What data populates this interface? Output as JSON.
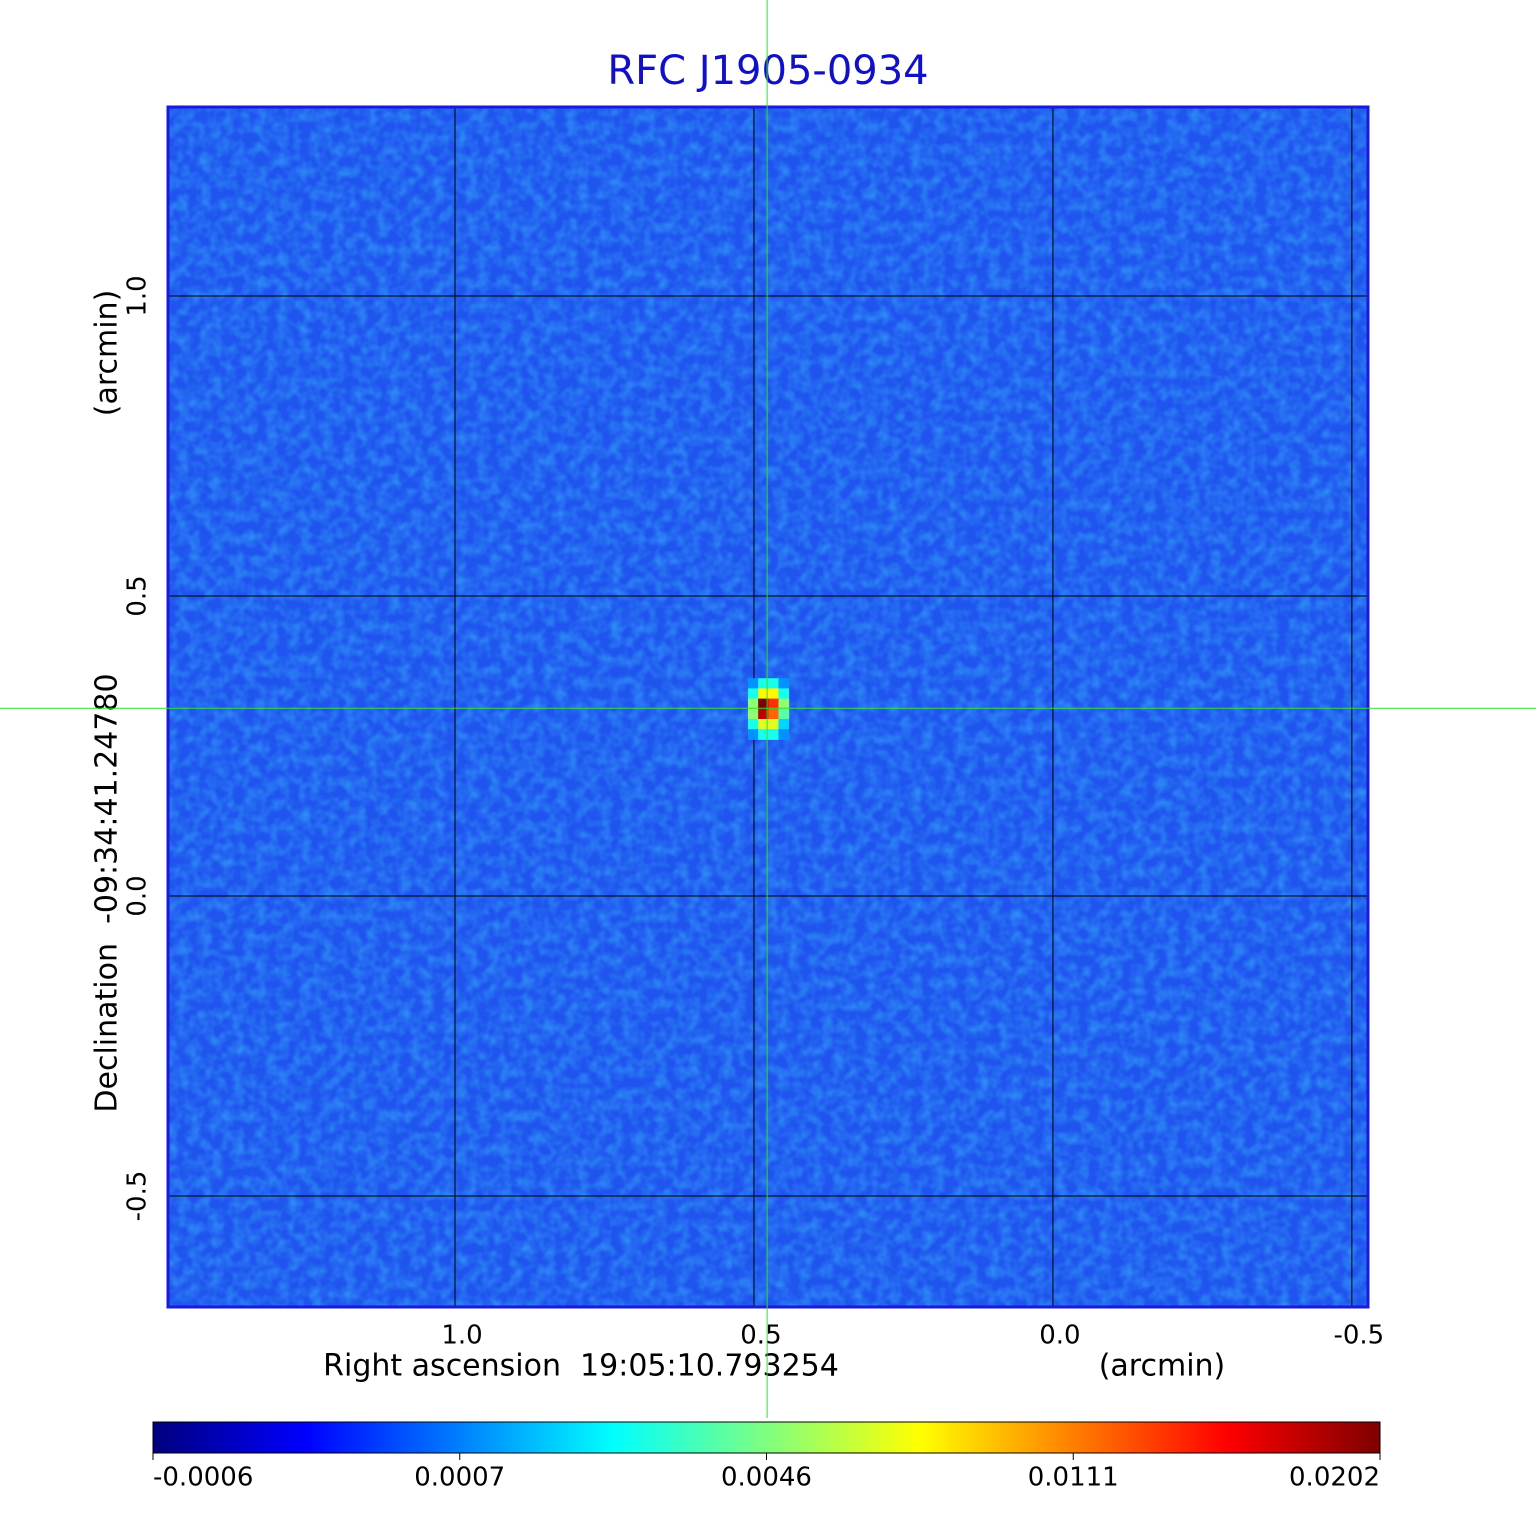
{
  "chart_data": {
    "type": "image",
    "title": "RFC J1905-0934",
    "x_label": "Right ascension  19:05:10.793254",
    "x_unit": "(arcmin)",
    "y_label": "Declination  -09:34:41.24780",
    "y_unit": "(arcmin)",
    "xlim": [
      1.48,
      -0.527
    ],
    "ylim": [
      -0.685,
      1.315
    ],
    "xticks": [
      {
        "value": 1,
        "label": "1.0"
      },
      0.5,
      {
        "value": 0,
        "label": "0.0"
      },
      -0.5
    ],
    "yticks": [
      -0.5,
      {
        "value": 0,
        "label": "0.0"
      },
      0.5,
      {
        "value": 1,
        "label": "1.0"
      }
    ],
    "grid": true,
    "colormap": [
      "#00007f",
      "#0000ff",
      "#007fff",
      "#00ffff",
      "#7fff7f",
      "#ffff00",
      "#ff7f00",
      "#ff0000",
      "#7f0000"
    ],
    "colorbar_ticks": [
      -0.0006,
      0.0007,
      0.0046,
      0.0111,
      0.0202
    ],
    "image": {
      "x0": 0.51,
      "y0": 0.363,
      "pixel_size": 0.017,
      "values": [
        [
          0.001,
          0.003,
          0.003,
          0.001
        ],
        [
          0.003,
          0.008,
          0.008,
          0.003
        ],
        [
          0.005,
          0.0202,
          0.014,
          0.005
        ],
        [
          0.005,
          0.018,
          0.012,
          0.004
        ],
        [
          0.003,
          0.007,
          0.007,
          0.002
        ],
        [
          0.001,
          0.003,
          0.003,
          0.001
        ]
      ]
    },
    "marker": {
      "x": 0.478,
      "y": 0.313,
      "color": "#33dd33"
    }
  }
}
